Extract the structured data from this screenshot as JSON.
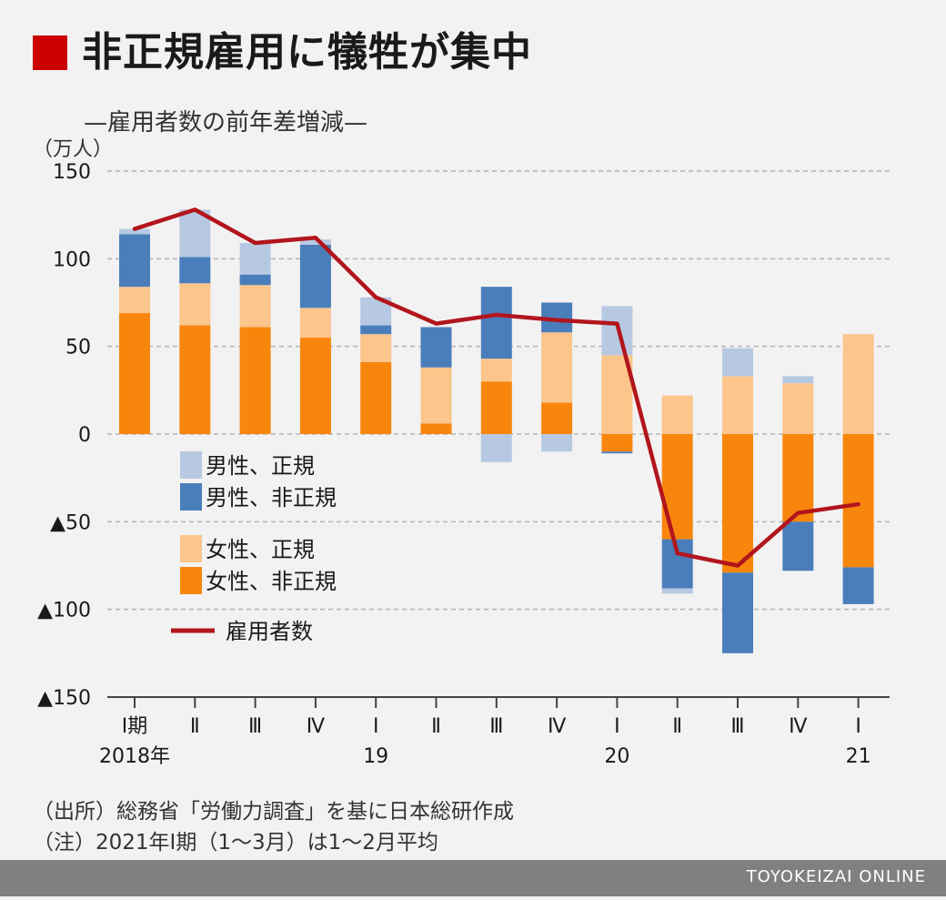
{
  "title": "非正規雇用に犠牲が集中",
  "subtitle": "—雇用者数の前年差増減—",
  "unit_label": "（万人）",
  "colors": {
    "accent": "#cc0000",
    "male_regular": "#b7c9e2",
    "male_nonregular": "#4a7ebb",
    "female_regular": "#fbc58c",
    "female_nonregular": "#f8860d",
    "total_line": "#b2151c",
    "grid": "#b5b5b5"
  },
  "chart_data": {
    "type": "bar",
    "ylim": [
      -150,
      150
    ],
    "y_ticks": [
      {
        "value": 150,
        "label": "150"
      },
      {
        "value": 100,
        "label": "100"
      },
      {
        "value": 50,
        "label": "50"
      },
      {
        "value": 0,
        "label": "0"
      },
      {
        "value": -50,
        "label": "▲50"
      },
      {
        "value": -100,
        "label": "▲100"
      },
      {
        "value": -150,
        "label": "▲150"
      }
    ],
    "categories": [
      "Ⅰ期",
      "Ⅱ",
      "Ⅲ",
      "Ⅳ",
      "Ⅰ",
      "Ⅱ",
      "Ⅲ",
      "Ⅳ",
      "Ⅰ",
      "Ⅱ",
      "Ⅲ",
      "Ⅳ",
      "Ⅰ"
    ],
    "year_labels": [
      {
        "index": 0,
        "label": "2018年"
      },
      {
        "index": 4,
        "label": "19"
      },
      {
        "index": 8,
        "label": "20"
      },
      {
        "index": 12,
        "label": "21"
      }
    ],
    "series": [
      {
        "name": "女性、非正規",
        "key": "female_nonregular",
        "values": [
          69,
          62,
          61,
          55,
          41,
          6,
          30,
          18,
          -10,
          -60,
          -79,
          -50,
          -76
        ]
      },
      {
        "name": "女性、正規",
        "key": "female_regular",
        "values": [
          15,
          24,
          24,
          17,
          16,
          32,
          13,
          40,
          45,
          22,
          33,
          29,
          57
        ]
      },
      {
        "name": "男性、非正規",
        "key": "male_nonregular",
        "values": [
          30,
          15,
          6,
          36,
          5,
          23,
          41,
          17,
          -1,
          -28,
          -46,
          -28,
          -21
        ]
      },
      {
        "name": "男性、正規",
        "key": "male_regular",
        "values": [
          3,
          27,
          18,
          3,
          16,
          0,
          -16,
          -10,
          28,
          -3,
          16,
          4,
          0
        ]
      },
      {
        "name": "雇用者数",
        "key": "total_line",
        "type": "line",
        "values": [
          117,
          128,
          109,
          112,
          78,
          63,
          68,
          65,
          63,
          -68,
          -75,
          -45,
          -40
        ]
      }
    ],
    "legend": [
      {
        "label": "男性、正規",
        "key": "male_regular",
        "kind": "box"
      },
      {
        "label": "男性、非正規",
        "key": "male_nonregular",
        "kind": "box"
      },
      {
        "label": "女性、正規",
        "key": "female_regular",
        "kind": "box"
      },
      {
        "label": "女性、非正規",
        "key": "female_nonregular",
        "kind": "box"
      },
      {
        "label": "雇用者数",
        "key": "total_line",
        "kind": "line"
      }
    ],
    "legend_position": "left-center"
  },
  "source_note": "（出所）総務省「労働力調査」を基に日本総研作成",
  "note": "（注）2021年Ⅰ期（1〜3月）は1〜2月平均",
  "footer_brand": "TOYOKEIZAI ONLINE"
}
